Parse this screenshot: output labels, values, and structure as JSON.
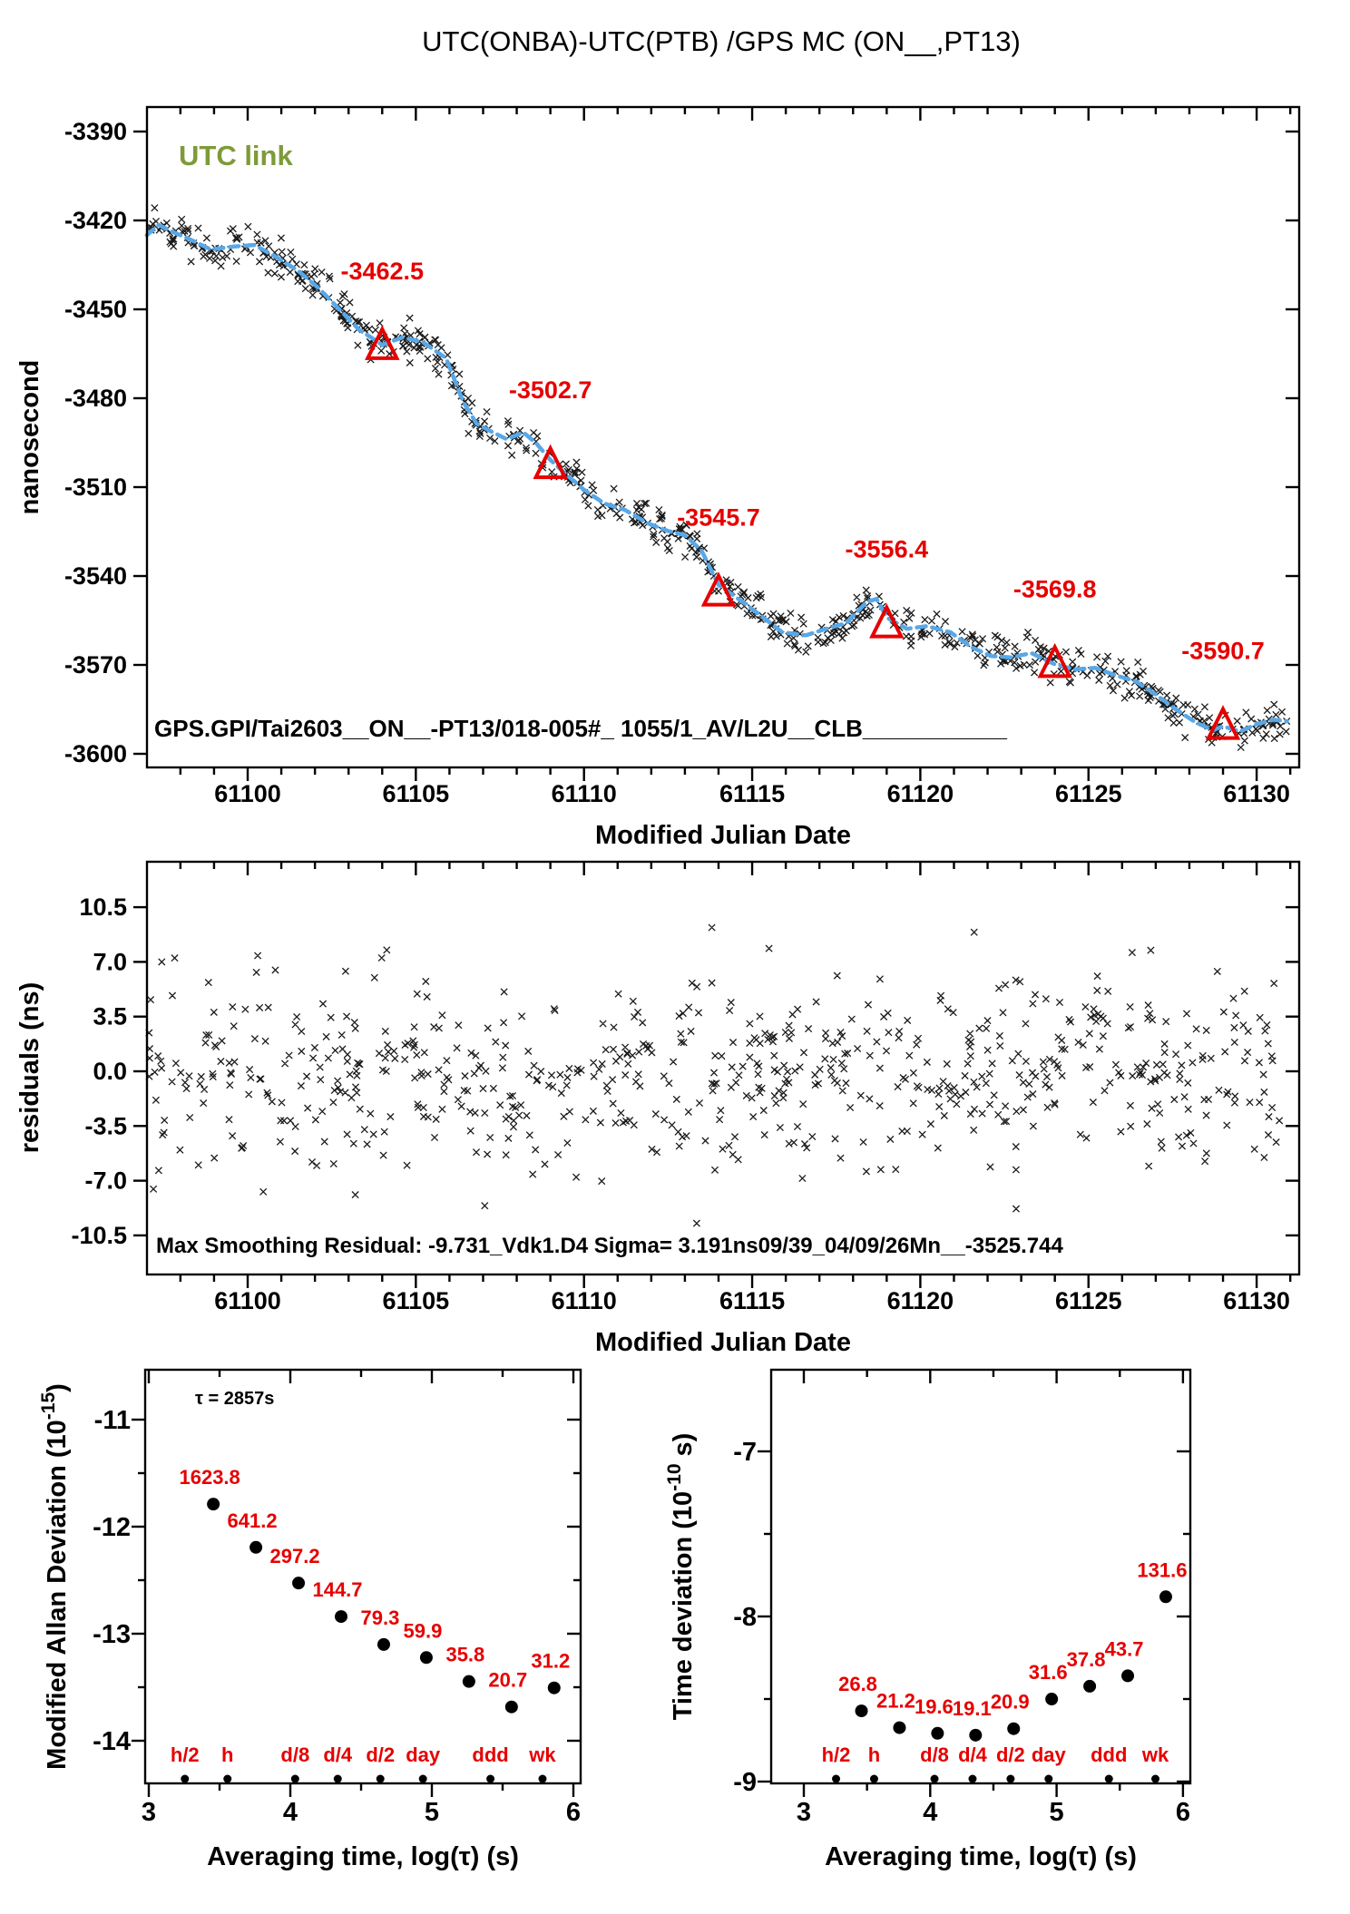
{
  "title": "UTC(ONBA)-UTC(PTB) /GPS MC (ON__,PT13)",
  "colors": {
    "red": "#e60000",
    "blue": "#58a8e8",
    "green": "#7d9b38",
    "black": "#000000",
    "scatter": "#1a1a1a"
  },
  "labels": {
    "utc_link": "UTC link",
    "gps_annotation": "GPS.GPI/Tai2603__ON__-PT13/018-005#_  1055/1_AV/L2U__CLB___________",
    "residual_annotation": "Max Smoothing Residual: -9.731_Vdk1.D4  Sigma= 3.191ns09/39_04/09/26Mn__-3525.744",
    "tau_annotation": "τ = 2857s",
    "nanosecond": "nanosecond",
    "mjd": "Modified Julian Date",
    "residuals": "residuals (ns)",
    "avg_time": "Averaging time, log(τ) (s)"
  },
  "chart_data": [
    {
      "panel": "utc-link-timeseries",
      "type": "scatter",
      "marker": "x",
      "ylabel": "nanosecond",
      "xlabel": "Modified Julian Date",
      "xlim": [
        61097.0,
        61131.26
      ],
      "ylim": [
        -3604.6,
        -3381.7
      ],
      "xticks_major": [
        61100,
        61105,
        61110,
        61115,
        61120,
        61125,
        61130
      ],
      "xtick_minor_step": 1,
      "yticks": [
        -3390,
        -3420,
        -3450,
        -3480,
        -3510,
        -3540,
        -3570,
        -3600
      ],
      "n_points": 690,
      "noise_sigma_ns": 3.2,
      "smoothed_line": [
        [
          61097.0,
          -3425.0
        ],
        [
          61097.35,
          -3421.5
        ],
        [
          61097.8,
          -3424.0
        ],
        [
          61098.3,
          -3426.5
        ],
        [
          61098.9,
          -3429.8
        ],
        [
          61099.6,
          -3428.8
        ],
        [
          61100.2,
          -3428.3
        ],
        [
          61100.8,
          -3432.0
        ],
        [
          61101.5,
          -3437.0
        ],
        [
          61102.1,
          -3442.7
        ],
        [
          61102.7,
          -3449.7
        ],
        [
          61103.3,
          -3456.7
        ],
        [
          61104.0,
          -3462.0
        ],
        [
          61104.6,
          -3459.5
        ],
        [
          61105.2,
          -3461.0
        ],
        [
          61105.9,
          -3466.5
        ],
        [
          61106.4,
          -3481.0
        ],
        [
          61106.8,
          -3488.5
        ],
        [
          61107.2,
          -3491.0
        ],
        [
          61107.7,
          -3493.8
        ],
        [
          61108.2,
          -3491.5
        ],
        [
          61108.6,
          -3495.5
        ],
        [
          61109.0,
          -3500.8
        ],
        [
          61109.5,
          -3506.0
        ],
        [
          61110.0,
          -3510.9
        ],
        [
          61110.6,
          -3515.5
        ],
        [
          61111.2,
          -3517.6
        ],
        [
          61111.9,
          -3522.2
        ],
        [
          61112.5,
          -3524.8
        ],
        [
          61113.0,
          -3526.2
        ],
        [
          61113.5,
          -3531.5
        ],
        [
          61114.0,
          -3543.0
        ],
        [
          61114.7,
          -3548.6
        ],
        [
          61115.1,
          -3552.0
        ],
        [
          61115.9,
          -3559.0
        ],
        [
          61116.6,
          -3560.0
        ],
        [
          61117.2,
          -3557.8
        ],
        [
          61117.8,
          -3555.9
        ],
        [
          61118.4,
          -3548.8
        ],
        [
          61118.7,
          -3547.7
        ],
        [
          61119.0,
          -3554.0
        ],
        [
          61119.6,
          -3557.8
        ],
        [
          61120.2,
          -3556.9
        ],
        [
          61120.9,
          -3559.0
        ],
        [
          61121.5,
          -3563.9
        ],
        [
          61122.1,
          -3567.0
        ],
        [
          61122.7,
          -3567.5
        ],
        [
          61123.3,
          -3566.0
        ],
        [
          61124.0,
          -3569.8
        ],
        [
          61124.6,
          -3571.5
        ],
        [
          61125.2,
          -3571.0
        ],
        [
          61125.8,
          -3573.5
        ],
        [
          61126.4,
          -3575.5
        ],
        [
          61127.0,
          -3580.0
        ],
        [
          61127.6,
          -3585.0
        ],
        [
          61128.2,
          -3589.5
        ],
        [
          61128.7,
          -3592.0
        ],
        [
          61129.0,
          -3590.7
        ],
        [
          61129.5,
          -3592.5
        ],
        [
          61130.0,
          -3590.0
        ],
        [
          61130.5,
          -3588.5
        ],
        [
          61130.9,
          -3589.0
        ]
      ],
      "pivots": [
        {
          "mjd": 61104,
          "value": -3462.5,
          "label": "-3462.5"
        },
        {
          "mjd": 61109,
          "value": -3502.7,
          "label": "-3502.7"
        },
        {
          "mjd": 61114,
          "value": -3545.7,
          "label": "-3545.7"
        },
        {
          "mjd": 61119,
          "value": -3556.4,
          "label": "-3556.4"
        },
        {
          "mjd": 61124,
          "value": -3569.8,
          "label": "-3569.8"
        },
        {
          "mjd": 61129,
          "value": -3590.7,
          "label": "-3590.7"
        }
      ]
    },
    {
      "panel": "residuals",
      "type": "scatter",
      "marker": "x",
      "ylabel": "residuals (ns)",
      "xlabel": "Modified Julian Date",
      "xlim": [
        61097.0,
        61131.26
      ],
      "ylim": [
        -13.0,
        13.4
      ],
      "xticks_major": [
        61100,
        61105,
        61110,
        61115,
        61120,
        61125,
        61130
      ],
      "xtick_minor_step": 1,
      "yticks": [
        10.5,
        7.0,
        3.5,
        0.0,
        -3.5,
        -7.0,
        -10.5
      ],
      "ytick_labels": [
        "10.5",
        "7.0",
        "3.5",
        "0.0",
        "-3.5",
        "-7.0",
        "-10.5"
      ],
      "n_points": 690,
      "noise_sigma_ns": 3.0,
      "max_residual": -9.731,
      "outliers": [
        [
          61113.35,
          -9.73
        ],
        [
          61113.8,
          9.2
        ],
        [
          61107.05,
          -8.6
        ],
        [
          61121.6,
          8.9
        ],
        [
          61122.85,
          -8.8
        ],
        [
          61126.3,
          7.6
        ],
        [
          61100.3,
          7.4
        ],
        [
          61103.2,
          -7.9
        ]
      ]
    },
    {
      "panel": "modified-allan-deviation",
      "type": "scatter",
      "marker": "dot",
      "ylabel_parts": {
        "pre": "Modified Allan Deviation (10",
        "sup": "-15",
        "post": ")"
      },
      "xlabel": "Averaging time, log(τ) (s)",
      "tau_annotation": "τ = 2857s",
      "unit_exponent": -15,
      "xlim": [
        2.974,
        6.08
      ],
      "ylim": [
        -14.4,
        -10.53
      ],
      "xticks": [
        3,
        4,
        5,
        6
      ],
      "xtick_minor_step": 0.5,
      "yticks": [
        -11,
        -12,
        -13,
        -14
      ],
      "ytick_minor_step": 0.5,
      "x_log_tau": [
        3.456,
        3.757,
        4.058,
        4.359,
        4.66,
        4.961,
        5.262,
        5.563,
        5.864
      ],
      "values": [
        1623.8,
        641.2,
        297.2,
        144.7,
        79.3,
        59.9,
        35.8,
        20.7,
        31.2
      ],
      "value_labels": [
        "1623.8",
        "641.2",
        "297.2",
        "144.7",
        "79.3",
        "59.9",
        "35.8",
        "20.7",
        "31.2"
      ],
      "time_scale_labels": [
        {
          "label": "h/2",
          "log": 3.255
        },
        {
          "label": "h",
          "log": 3.556
        },
        {
          "label": "d/8",
          "log": 4.034
        },
        {
          "label": "d/4",
          "log": 4.335
        },
        {
          "label": "d/2",
          "log": 4.636
        },
        {
          "label": "day",
          "log": 4.937
        },
        {
          "label": "ddd",
          "log": 5.414
        },
        {
          "label": "wk",
          "log": 5.782
        }
      ]
    },
    {
      "panel": "time-deviation",
      "type": "scatter",
      "marker": "dot",
      "ylabel_parts": {
        "pre": "Time deviation (10",
        "sup": "-10",
        "post": " s)"
      },
      "xlabel": "Averaging time, log(τ) (s)",
      "unit_exponent": -10,
      "xlim": [
        2.742,
        6.06
      ],
      "ylim": [
        -9.01,
        -6.51
      ],
      "xticks": [
        3,
        4,
        5,
        6
      ],
      "xtick_minor_step": 0.5,
      "yticks": [
        -7,
        -8,
        -9
      ],
      "ytick_minor_step": 0.5,
      "x_log_tau": [
        3.456,
        3.757,
        4.058,
        4.359,
        4.66,
        4.961,
        5.262,
        5.563,
        5.864
      ],
      "values": [
        26.8,
        21.2,
        19.6,
        19.1,
        20.9,
        31.6,
        37.8,
        43.7,
        131.6
      ],
      "value_labels": [
        "26.8",
        "21.2",
        "19.6",
        "19.1",
        "20.9",
        "31.6",
        "37.8",
        "43.7",
        "131.6"
      ],
      "time_scale_labels": [
        {
          "label": "h/2",
          "log": 3.255
        },
        {
          "label": "h",
          "log": 3.556
        },
        {
          "label": "d/8",
          "log": 4.034
        },
        {
          "label": "d/4",
          "log": 4.335
        },
        {
          "label": "d/2",
          "log": 4.636
        },
        {
          "label": "day",
          "log": 4.937
        },
        {
          "label": "ddd",
          "log": 5.414
        },
        {
          "label": "wk",
          "log": 5.782
        }
      ]
    }
  ]
}
